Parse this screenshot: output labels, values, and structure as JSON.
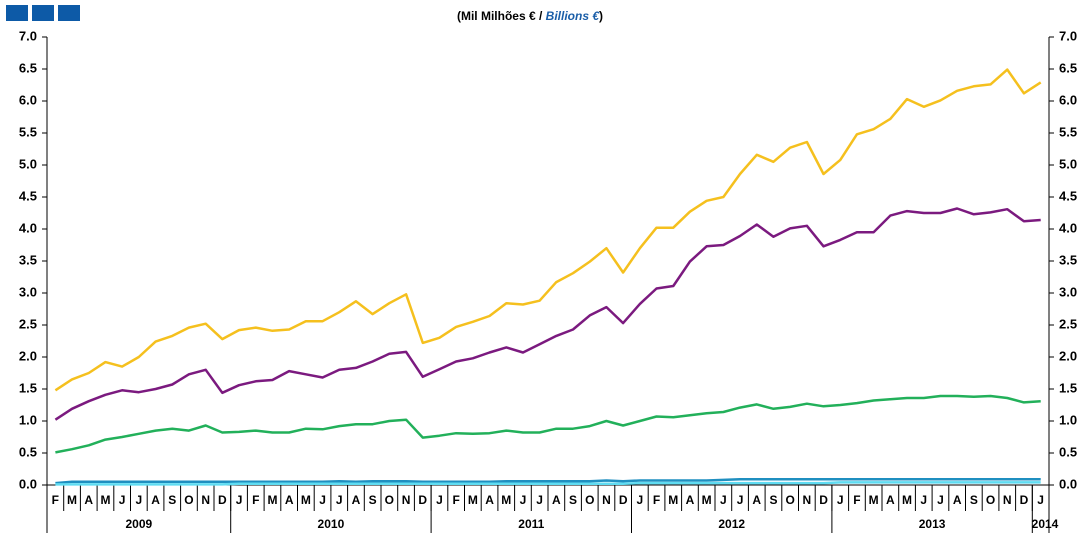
{
  "chart_data": {
    "type": "line",
    "subtitle_parts": [
      "(Mil Milhões € / ",
      "Billions €",
      ")"
    ],
    "categories": [
      "F",
      "M",
      "A",
      "M",
      "J",
      "J",
      "A",
      "S",
      "O",
      "N",
      "D",
      "J",
      "F",
      "M",
      "A",
      "M",
      "J",
      "J",
      "A",
      "S",
      "O",
      "N",
      "D",
      "J",
      "F",
      "M",
      "A",
      "M",
      "J",
      "J",
      "A",
      "S",
      "O",
      "N",
      "D",
      "J",
      "F",
      "M",
      "A",
      "M",
      "J",
      "J",
      "A",
      "S",
      "O",
      "N",
      "D",
      "J",
      "F",
      "M",
      "A",
      "M",
      "J",
      "J",
      "A",
      "S",
      "O",
      "N",
      "D",
      "J"
    ],
    "years": [
      "2009",
      "2010",
      "2011",
      "2012",
      "2013",
      "2014"
    ],
    "series": [
      {
        "color": "#f5c01e",
        "values": [
          1.48,
          1.65,
          1.75,
          1.92,
          1.85,
          2.0,
          2.24,
          2.33,
          2.46,
          2.52,
          2.28,
          2.42,
          2.46,
          2.41,
          2.43,
          2.56,
          2.56,
          2.7,
          2.87,
          2.67,
          2.84,
          2.98,
          2.22,
          2.3,
          2.47,
          2.55,
          2.64,
          2.84,
          2.82,
          2.88,
          3.17,
          3.31,
          3.49,
          3.7,
          3.32,
          3.7,
          4.02,
          4.02,
          4.27,
          4.44,
          4.5,
          4.86,
          5.16,
          5.05,
          5.27,
          5.36,
          4.86,
          5.08,
          5.48,
          5.56,
          5.72,
          6.03,
          5.91,
          6.01,
          6.16,
          6.23,
          6.26,
          6.49,
          6.12,
          6.29
        ]
      },
      {
        "color": "#7b1a7f",
        "values": [
          1.02,
          1.19,
          1.31,
          1.41,
          1.48,
          1.45,
          1.5,
          1.57,
          1.73,
          1.8,
          1.44,
          1.56,
          1.62,
          1.64,
          1.78,
          1.73,
          1.68,
          1.8,
          1.83,
          1.93,
          2.05,
          2.08,
          1.69,
          1.81,
          1.93,
          1.98,
          2.07,
          2.15,
          2.07,
          2.2,
          2.33,
          2.43,
          2.65,
          2.78,
          2.53,
          2.83,
          3.07,
          3.11,
          3.49,
          3.73,
          3.75,
          3.89,
          4.07,
          3.88,
          4.01,
          4.05,
          3.73,
          3.83,
          3.95,
          3.95,
          4.21,
          4.28,
          4.25,
          4.25,
          4.32,
          4.23,
          4.26,
          4.31,
          4.12,
          4.14
        ]
      },
      {
        "color": "#22b05a",
        "values": [
          0.51,
          0.56,
          0.62,
          0.71,
          0.75,
          0.8,
          0.85,
          0.88,
          0.85,
          0.93,
          0.82,
          0.83,
          0.85,
          0.82,
          0.82,
          0.88,
          0.87,
          0.92,
          0.95,
          0.95,
          1.0,
          1.02,
          0.74,
          0.77,
          0.81,
          0.8,
          0.81,
          0.85,
          0.82,
          0.82,
          0.88,
          0.88,
          0.92,
          1.0,
          0.93,
          1.0,
          1.07,
          1.06,
          1.09,
          1.12,
          1.14,
          1.21,
          1.26,
          1.19,
          1.22,
          1.27,
          1.23,
          1.25,
          1.28,
          1.32,
          1.34,
          1.36,
          1.36,
          1.39,
          1.39,
          1.38,
          1.39,
          1.36,
          1.29,
          1.31
        ]
      },
      {
        "color": "#1f8fc0",
        "values": [
          0.03,
          0.05,
          0.05,
          0.05,
          0.05,
          0.05,
          0.05,
          0.05,
          0.05,
          0.05,
          0.05,
          0.05,
          0.05,
          0.05,
          0.05,
          0.05,
          0.05,
          0.06,
          0.05,
          0.06,
          0.06,
          0.06,
          0.05,
          0.05,
          0.05,
          0.05,
          0.05,
          0.06,
          0.06,
          0.06,
          0.06,
          0.06,
          0.06,
          0.07,
          0.06,
          0.07,
          0.07,
          0.07,
          0.07,
          0.07,
          0.08,
          0.09,
          0.09,
          0.09,
          0.09,
          0.09,
          0.09,
          0.09,
          0.09,
          0.09,
          0.09,
          0.09,
          0.09,
          0.09,
          0.09,
          0.09,
          0.09,
          0.09,
          0.09,
          0.09
        ]
      },
      {
        "color": "#5fdcf2",
        "values": [
          0.01,
          0.01,
          0.01,
          0.01,
          0.01,
          0.01,
          0.01,
          0.01,
          0.01,
          0.01,
          0.01,
          0.02,
          0.02,
          0.02,
          0.02,
          0.02,
          0.02,
          0.02,
          0.02,
          0.02,
          0.02,
          0.02,
          0.02,
          0.02,
          0.02,
          0.02,
          0.02,
          0.02,
          0.02,
          0.02,
          0.02,
          0.02,
          0.02,
          0.02,
          0.02,
          0.03,
          0.03,
          0.03,
          0.03,
          0.03,
          0.03,
          0.03,
          0.03,
          0.03,
          0.03,
          0.03,
          0.03,
          0.04,
          0.04,
          0.04,
          0.04,
          0.04,
          0.04,
          0.04,
          0.04,
          0.04,
          0.04,
          0.04,
          0.04,
          0.04
        ]
      }
    ],
    "ylim": [
      0,
      7
    ],
    "yticks": [
      {
        "value": 0,
        "label": "0.0"
      },
      {
        "value": 0.5,
        "label": "0.5"
      },
      {
        "value": 1,
        "label": "1.0"
      },
      {
        "value": 1.5,
        "label": "1.5"
      },
      {
        "value": 2,
        "label": "2.0"
      },
      {
        "value": 2.5,
        "label": "2.5"
      },
      {
        "value": 3,
        "label": "3.0"
      },
      {
        "value": 3.5,
        "label": "3.5"
      },
      {
        "value": 4,
        "label": "4.0"
      },
      {
        "value": 4.5,
        "label": "4.5"
      },
      {
        "value": 5,
        "label": "5.0"
      },
      {
        "value": 5.5,
        "label": "5.5"
      },
      {
        "value": 6,
        "label": "6.0"
      },
      {
        "value": 6.5,
        "label": "6.5"
      },
      {
        "value": 7,
        "label": "7.0"
      }
    ],
    "y2lim": [
      0,
      7
    ],
    "y2ticks": [
      {
        "value": 0,
        "label": "0.0"
      },
      {
        "value": 0.5,
        "label": "0.5"
      },
      {
        "value": 1,
        "label": "1.0"
      },
      {
        "value": 1.5,
        "label": "1.5"
      },
      {
        "value": 2,
        "label": "2.0"
      },
      {
        "value": 2.5,
        "label": "2.5"
      },
      {
        "value": 3,
        "label": "3.0"
      },
      {
        "value": 3.5,
        "label": "3.5"
      },
      {
        "value": 4,
        "label": "4.0"
      },
      {
        "value": 4.5,
        "label": "4.5"
      },
      {
        "value": 5,
        "label": "5.0"
      },
      {
        "value": 5.5,
        "label": "5.5"
      },
      {
        "value": 6,
        "label": "6.0"
      },
      {
        "value": 6.5,
        "label": "6.5"
      },
      {
        "value": 7,
        "label": "7.0"
      }
    ],
    "grid": false
  }
}
